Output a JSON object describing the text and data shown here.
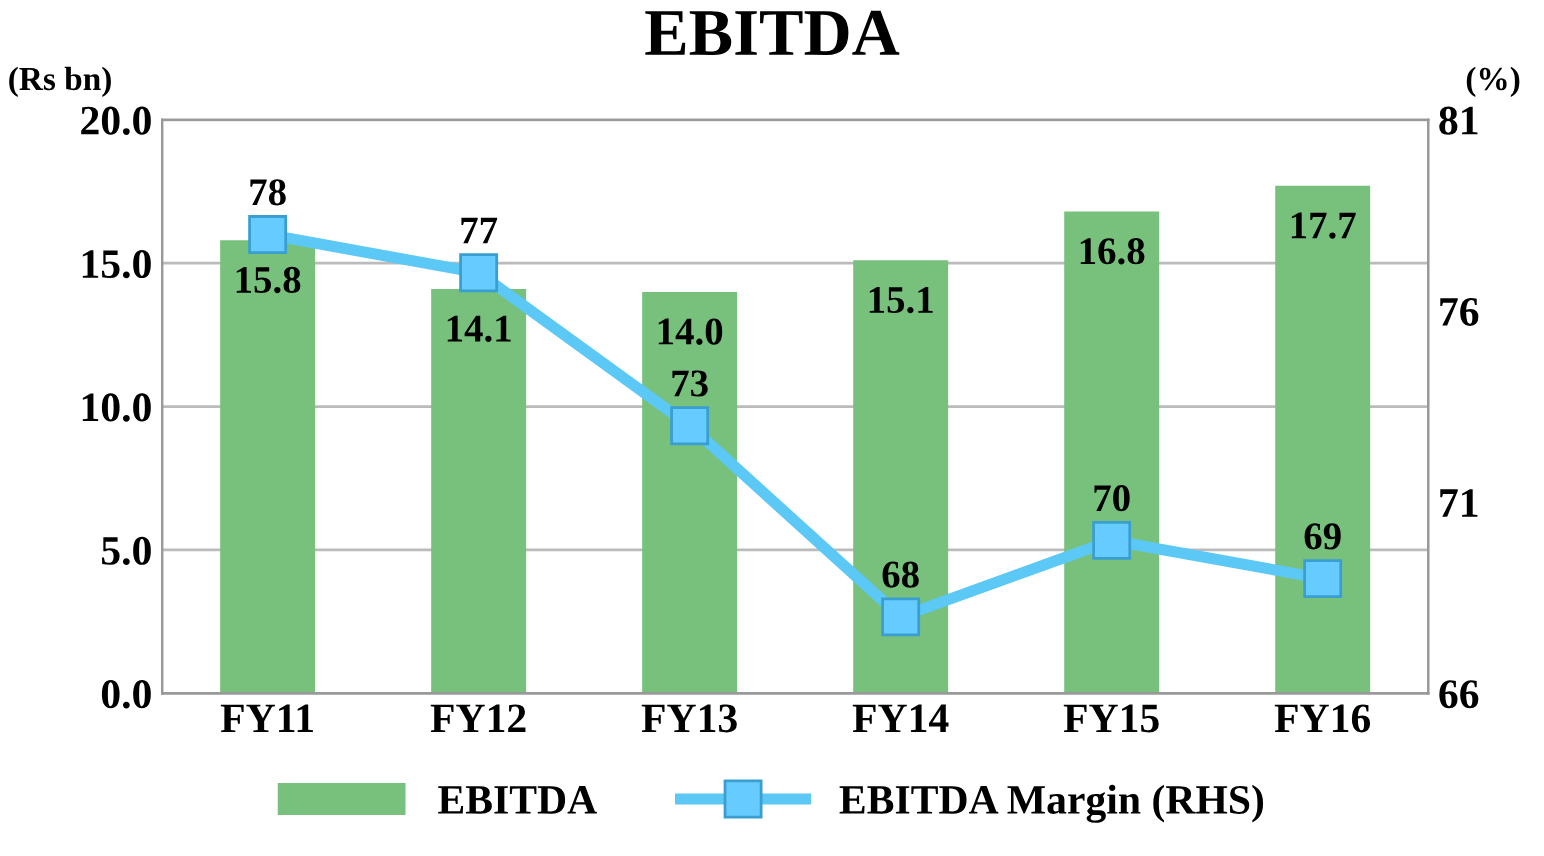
{
  "chart_data": {
    "type": "bar",
    "title": "EBITDA",
    "ylabel": "(Rs bn)",
    "y2label": "(%)",
    "categories": [
      "FY11",
      "FY12",
      "FY13",
      "FY14",
      "FY15",
      "FY16"
    ],
    "series": [
      {
        "name": "EBITDA",
        "color": "#77c17d",
        "values": [
          15.8,
          14.1,
          14.0,
          15.1,
          16.8,
          17.7
        ],
        "value_labels": [
          "15.8",
          "14.1",
          "14.0",
          "15.1",
          "16.8",
          "17.7"
        ]
      },
      {
        "name": "EBITDA Margin (RHS)",
        "type": "line",
        "axis": "y2",
        "color": "#5bc8f5",
        "marker": "square",
        "values": [
          78,
          77,
          73,
          68,
          70,
          69
        ]
      }
    ],
    "ylim": [
      0,
      20
    ],
    "yticks": [
      {
        "value": 0,
        "label": "0.0"
      },
      {
        "value": 5,
        "label": "5.0"
      },
      {
        "value": 10,
        "label": "10.0"
      },
      {
        "value": 15,
        "label": "15.0"
      },
      {
        "value": 20,
        "label": "20.0"
      }
    ],
    "y2lim": [
      66,
      81
    ],
    "y2ticks": [
      66,
      71,
      76,
      81
    ],
    "grid": "y",
    "legend": "bottom",
    "data_labels": true
  }
}
